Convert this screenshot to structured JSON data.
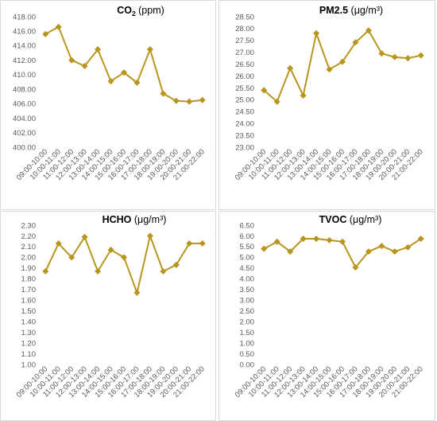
{
  "chart_data": [
    {
      "type": "line",
      "title": "CO",
      "title_sub": "2",
      "title_unit": "(ppm)",
      "categories": [
        "09:00-10:00",
        "10:00-11:00",
        "11:00-12:00",
        "12:00-13:00",
        "13:00-14:00",
        "14:00-15:00",
        "15:00-16:00",
        "16:00-17:00",
        "17:00-18:00",
        "18:00-19:00",
        "19:00-20:00",
        "20:00-21:00",
        "21:00-22:00"
      ],
      "values": [
        415.6,
        416.6,
        412.0,
        411.2,
        413.5,
        409.1,
        410.3,
        408.9,
        413.5,
        407.4,
        406.4,
        406.3,
        406.5
      ],
      "ylim": [
        400,
        418
      ],
      "ystep": 2,
      "ydecimals": 2,
      "color": "#b8961e"
    },
    {
      "type": "line",
      "title": "PM2.5",
      "title_sub": "",
      "title_unit": "(μg/m³)",
      "categories": [
        "09:00-10:00",
        "10:00-11:00",
        "11:00-12:00",
        "12:00-13:00",
        "13:00-14:00",
        "14:00-15:00",
        "15:00-16:00",
        "16:00-17:00",
        "17:00-18:00",
        "18:00-19:00",
        "19:00-20:00",
        "20:00-21:00",
        "21:00-22:00"
      ],
      "values": [
        25.4,
        24.92,
        26.33,
        25.18,
        27.8,
        26.28,
        26.6,
        27.42,
        27.92,
        26.95,
        26.8,
        26.75,
        26.87
      ],
      "ylim": [
        23,
        28.5
      ],
      "ystep": 0.5,
      "ydecimals": 2,
      "color": "#b8961e"
    },
    {
      "type": "line",
      "title": "HCHO",
      "title_sub": "",
      "title_unit": "(μg/m³)",
      "categories": [
        "09:00-10:00",
        "10:00-11:00",
        "11:00-12:00",
        "12:00-13:00",
        "13:00-14:00",
        "14:00-15:00",
        "15:00-16:00",
        "16:00-17:00",
        "17:00-18:00",
        "18:00-19:00",
        "19:00-20:00",
        "20:00-21:00",
        "21:00-22:00"
      ],
      "values": [
        1.87,
        2.13,
        2.0,
        2.19,
        1.87,
        2.07,
        2.0,
        1.67,
        2.2,
        1.87,
        1.93,
        2.13,
        2.13
      ],
      "ylim": [
        1.0,
        2.3
      ],
      "ystep": 0.1,
      "ydecimals": 2,
      "color": "#b8961e"
    },
    {
      "type": "line",
      "title": "TVOC",
      "title_sub": "",
      "title_unit": "(μg/m³)",
      "categories": [
        "09:00-10:00",
        "10:00-11:00",
        "11:00-12:00",
        "12:00-13:00",
        "13:00-14:00",
        "14:00-15:00",
        "15:00-16:00",
        "16:00-17:00",
        "17:00-18:00",
        "18:00-19:00",
        "19:00-20:00",
        "20:00-21:00",
        "21:00-22:00"
      ],
      "values": [
        5.4,
        5.73,
        5.27,
        5.87,
        5.87,
        5.8,
        5.73,
        4.53,
        5.27,
        5.53,
        5.27,
        5.47,
        5.87
      ],
      "ylim": [
        0,
        6.5
      ],
      "ystep": 0.5,
      "ydecimals": 2,
      "color": "#b8961e"
    }
  ]
}
